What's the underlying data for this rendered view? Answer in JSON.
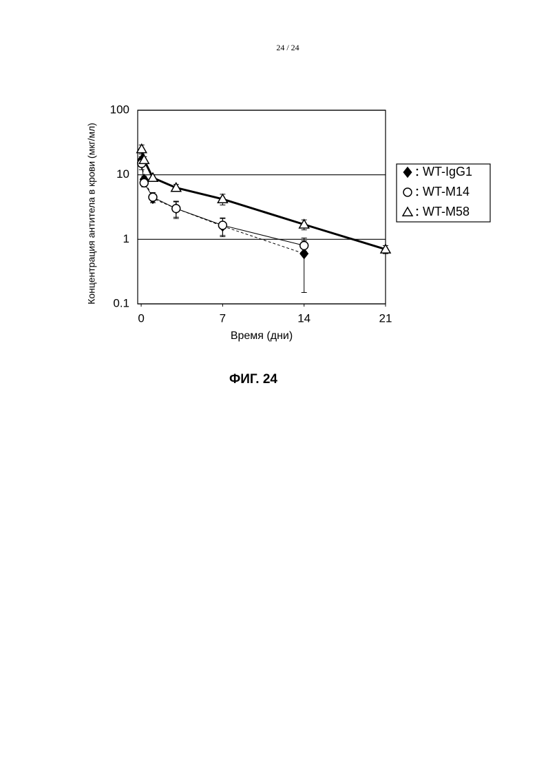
{
  "page_number": "24 / 24",
  "caption": "ФИГ. 24",
  "chart_data": {
    "type": "line",
    "x_label": "Время (дни)",
    "y_label": "Концентрация антитела в крови (мкг/мл)",
    "xlim": [
      -0.3,
      21
    ],
    "xticks": [
      0,
      7,
      14,
      21
    ],
    "ylim": [
      0.1,
      100
    ],
    "yticks": [
      0.1,
      1,
      10,
      100
    ],
    "log_y": true,
    "grid": true,
    "legend": "right",
    "series": [
      {
        "name": "WT-IgG1",
        "color": "#000000",
        "marker": "diamond",
        "line_style": "dashed",
        "line_width": 1,
        "x": [
          0.04,
          0.25,
          1,
          3,
          7,
          14
        ],
        "values": [
          17,
          8.5,
          4.3,
          3.0,
          1.6,
          0.6
        ],
        "errors": [
          2,
          1,
          0.6,
          0.8,
          0.5,
          0.45
        ]
      },
      {
        "name": "WT-M14",
        "color": "#000000",
        "marker": "circle",
        "line_style": "solid",
        "line_width": 1,
        "x": [
          0.04,
          0.25,
          1,
          3,
          7,
          14
        ],
        "values": [
          15,
          7.5,
          4.5,
          3.0,
          1.65,
          0.8
        ],
        "errors": [
          3,
          1,
          0.8,
          0.9,
          0.5,
          0.15
        ]
      },
      {
        "name": "WT-M58",
        "color": "#000000",
        "marker": "triangle",
        "line_style": "solid",
        "line_width": 3,
        "x": [
          0.04,
          0.25,
          1,
          3,
          7,
          14,
          21
        ],
        "values": [
          25,
          17,
          9,
          6.3,
          4.2,
          1.7,
          0.7
        ],
        "errors": [
          4,
          2,
          1,
          0.8,
          0.8,
          0.3,
          0.1
        ]
      }
    ]
  }
}
